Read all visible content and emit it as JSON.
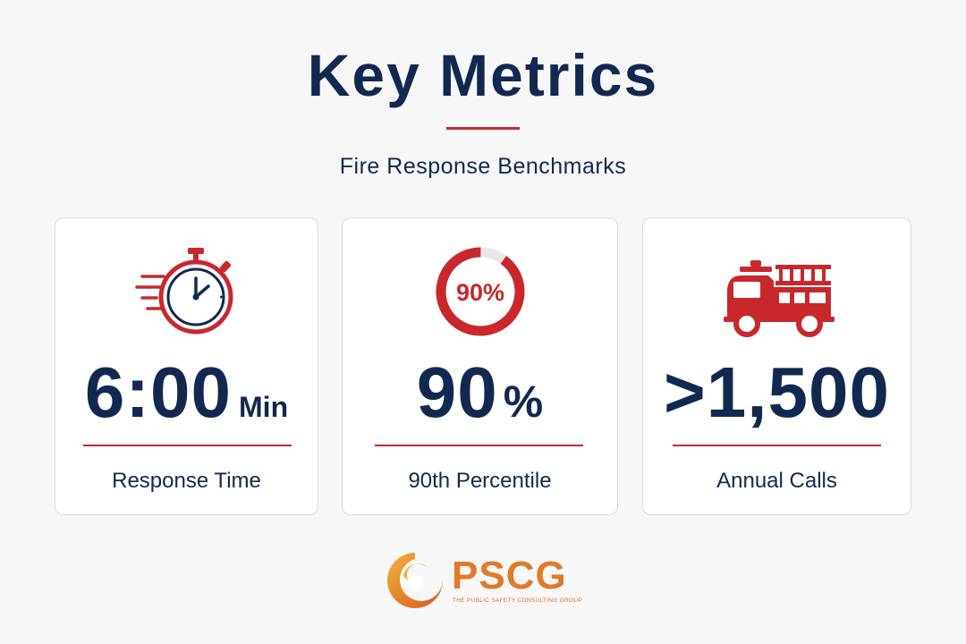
{
  "header": {
    "title": "Key Metrics",
    "subtitle": "Fire Response Benchmarks"
  },
  "colors": {
    "navy": "#13284f",
    "accent_red": "#c8282c",
    "logo_orange": "#e07a2a",
    "card_border": "#d9dade",
    "background": "#f7f7f8"
  },
  "cards": [
    {
      "icon": "stopwatch-icon",
      "value": "6:00",
      "unit": "Min",
      "label": "Response Time"
    },
    {
      "icon": "progress-ring-icon",
      "icon_text": "90%",
      "icon_progress": 0.9,
      "value": "90",
      "unit": "%",
      "label": "90th Percentile"
    },
    {
      "icon": "fire-truck-icon",
      "value": ">1,500",
      "unit": "",
      "label": "Annual Calls"
    }
  ],
  "logo": {
    "text": "PSCG",
    "tagline": "THE PUBLIC SAFETY CONSULTING GROUP"
  }
}
